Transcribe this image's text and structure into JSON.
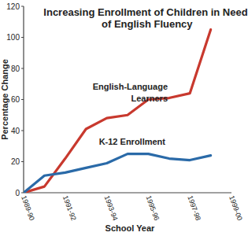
{
  "chart_data": {
    "type": "line",
    "title": "Increasing Enrollment of Children in Need of English Fluency",
    "x_label": "School Year",
    "y_label": "Percentage Change",
    "categories": [
      "1989-90",
      null,
      "1991-92",
      null,
      "1993-94",
      null,
      "1995-96",
      null,
      "1997-98",
      null,
      "1999-00"
    ],
    "series": [
      {
        "name": "English-Language Learners",
        "color": "#c8392e",
        "values": [
          0,
          4,
          22,
          41,
          48,
          50,
          60,
          61,
          64,
          105,
          null
        ]
      },
      {
        "name": "K-12 Enrollment",
        "color": "#2a6aa8",
        "values": [
          0,
          11,
          13,
          16,
          19,
          25,
          25,
          22,
          21,
          24,
          null
        ]
      }
    ],
    "ylim": [
      0,
      120
    ],
    "yticks": [
      0,
      20,
      40,
      60,
      80,
      100,
      120
    ],
    "grid": false
  }
}
